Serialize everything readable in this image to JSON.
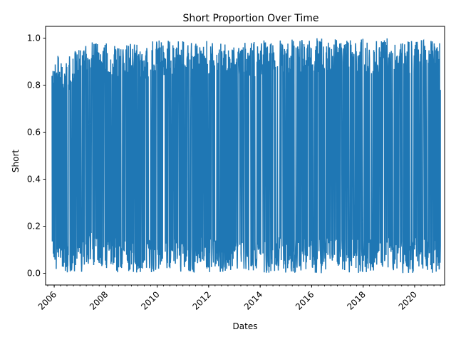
{
  "chart_data": {
    "type": "line",
    "title": "Short Proportion Over Time",
    "xlabel": "Dates",
    "ylabel": "Short",
    "x_range": [
      "2005-09-01",
      "2021-03-01"
    ],
    "ylim": [
      -0.05,
      1.05
    ],
    "x_ticks": [
      "2006",
      "2008",
      "2010",
      "2012",
      "2014",
      "2016",
      "2018",
      "2020"
    ],
    "y_ticks": [
      "0.0",
      "0.2",
      "0.4",
      "0.6",
      "0.8",
      "1.0"
    ],
    "x_minor_ticks": "quarterly",
    "grid": false,
    "legend": "none",
    "line_color": "#1f77b4",
    "series": [
      {
        "x": [
          "2005-12",
          "2006-03",
          "2006-06",
          "2006-09",
          "2006-12",
          "2007-03",
          "2007-06",
          "2007-09",
          "2007-12",
          "2008-03",
          "2008-06",
          "2008-09",
          "2008-12",
          "2009-03",
          "2009-06",
          "2009-09",
          "2009-12",
          "2010-03",
          "2010-06",
          "2010-09",
          "2010-12",
          "2011-03",
          "2011-06",
          "2011-09",
          "2011-12",
          "2012-03",
          "2012-06",
          "2012-09",
          "2012-12",
          "2013-03",
          "2013-06",
          "2013-09",
          "2013-12",
          "2014-03",
          "2014-06",
          "2014-09",
          "2014-12",
          "2015-03",
          "2015-06",
          "2015-09",
          "2015-12",
          "2016-03",
          "2016-06",
          "2016-09",
          "2016-12",
          "2017-03",
          "2017-06",
          "2017-09",
          "2017-12",
          "2018-03",
          "2018-06",
          "2018-09",
          "2018-12",
          "2019-03",
          "2019-06",
          "2019-09",
          "2019-12",
          "2020-03",
          "2020-06",
          "2020-09",
          "2020-12"
        ],
        "max": [
          0.85,
          0.93,
          0.88,
          0.94,
          0.95,
          0.99,
          0.99,
          0.98,
          0.99,
          0.98,
          0.98,
          0.97,
          0.98,
          0.98,
          0.96,
          0.98,
          0.99,
          0.99,
          0.99,
          0.98,
          0.99,
          0.99,
          0.98,
          0.98,
          0.99,
          0.99,
          1.0,
          0.99,
          0.99,
          0.99,
          0.98,
          0.98,
          0.99,
          0.99,
          0.99,
          1.0,
          0.99,
          1.0,
          1.0,
          1.0,
          1.0,
          1.0,
          1.0,
          0.99,
          1.0,
          1.0,
          1.0,
          1.0,
          1.0,
          0.99,
          1.0,
          1.0,
          1.0,
          1.0,
          1.0,
          1.0,
          1.0,
          1.0,
          0.99,
          0.99,
          0.98
        ],
        "min": [
          0.02,
          0.0,
          0.0,
          0.0,
          0.0,
          0.01,
          0.04,
          0.02,
          0.01,
          0.03,
          0.0,
          0.02,
          0.0,
          0.0,
          0.0,
          0.0,
          0.01,
          0.02,
          0.0,
          0.01,
          0.0,
          0.0,
          0.0,
          0.01,
          0.0,
          0.0,
          0.0,
          0.0,
          0.0,
          0.01,
          0.0,
          0.0,
          0.0,
          0.0,
          0.0,
          0.01,
          0.0,
          0.0,
          0.0,
          0.0,
          0.01,
          0.0,
          0.0,
          0.03,
          0.04,
          0.01,
          0.0,
          0.0,
          0.0,
          0.0,
          0.0,
          0.0,
          0.01,
          0.0,
          0.0,
          0.0,
          0.0,
          0.0,
          0.0,
          0.0,
          0.0
        ],
        "last": 0.78
      }
    ]
  }
}
